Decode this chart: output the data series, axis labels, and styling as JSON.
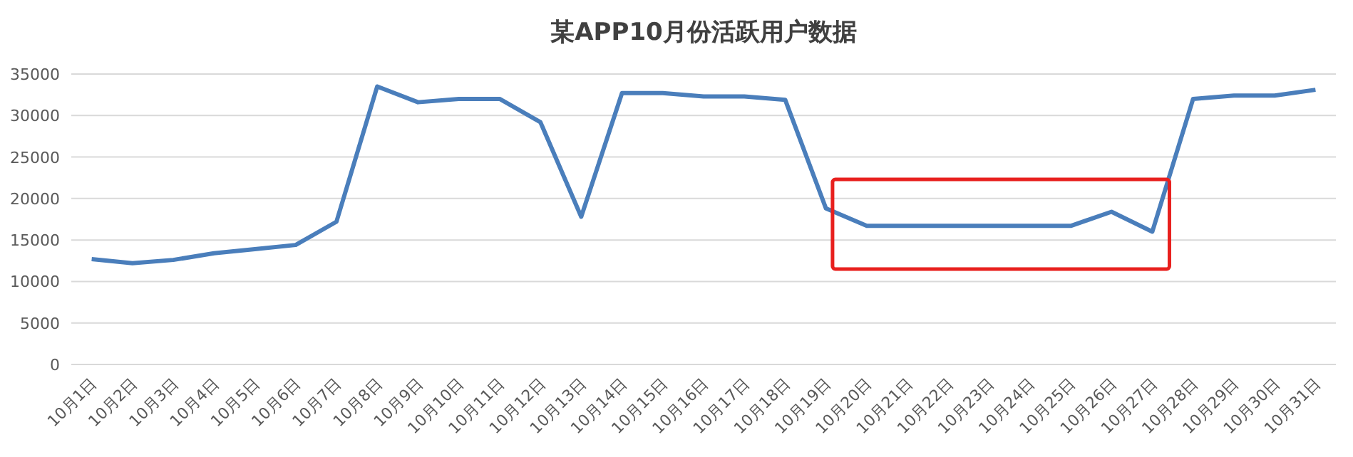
{
  "chart_data": {
    "type": "line",
    "title": "某APP10月份活跃用户数据",
    "categories": [
      "10月1日",
      "10月2日",
      "10月3日",
      "10月4日",
      "10月5日",
      "10月6日",
      "10月7日",
      "10月8日",
      "10月9日",
      "10月10日",
      "10月11日",
      "10月12日",
      "10月13日",
      "10月14日",
      "10月15日",
      "10月16日",
      "10月17日",
      "10月18日",
      "10月19日",
      "10月20日",
      "10月21日",
      "10月22日",
      "10月23日",
      "10月24日",
      "10月25日",
      "10月26日",
      "10月27日",
      "10月28日",
      "10月29日",
      "10月30日",
      "10月31日"
    ],
    "series": [
      {
        "color": "#4a7ebb",
        "values": [
          12700,
          12200,
          12600,
          13400,
          13900,
          14400,
          17200,
          33500,
          31600,
          32000,
          32000,
          29200,
          17800,
          32700,
          32700,
          32300,
          32300,
          31900,
          18800,
          16700,
          16700,
          16700,
          16700,
          16700,
          16700,
          18400,
          16000,
          32000,
          32400,
          32400,
          33100
        ]
      }
    ],
    "ylim": [
      0,
      35000
    ],
    "yticks": [
      0,
      5000,
      10000,
      15000,
      20000,
      25000,
      30000,
      35000
    ],
    "grid": "y",
    "marker": "none",
    "line_style": "solid"
  }
}
